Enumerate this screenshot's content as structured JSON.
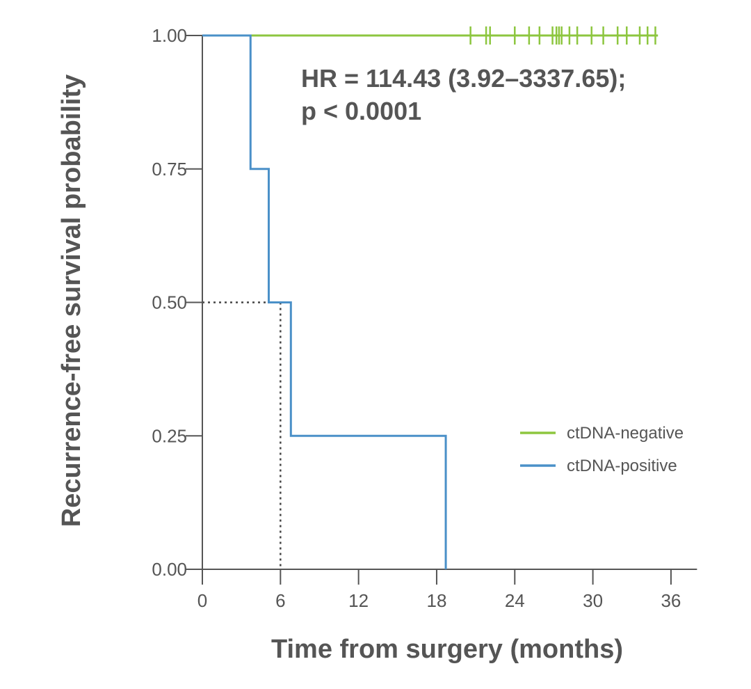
{
  "chart_data": {
    "type": "line",
    "subtype": "kaplan-meier step",
    "xlabel": "Time from surgery (months)",
    "ylabel": "Recurrence-free survival probability",
    "xlim": [
      0,
      38
    ],
    "ylim": [
      0,
      1
    ],
    "x_ticks": [
      "0",
      "6",
      "12",
      "18",
      "24",
      "30",
      "36"
    ],
    "y_ticks": [
      "0.00",
      "0.25",
      "0.50",
      "0.75",
      "1.00"
    ],
    "annotation": {
      "line1": "HR = 114.43 (3.92–3337.65);",
      "line2": "p < 0.0001"
    },
    "median_reference": {
      "x": 6.0,
      "y": 0.5,
      "style": "dotted"
    },
    "legend_position": "right",
    "series": [
      {
        "name": "ctDNA-negative",
        "color": "#8dc63f",
        "steps": [
          [
            0,
            1.0
          ],
          [
            35.0,
            1.0
          ]
        ],
        "censor_times": [
          20.6,
          21.8,
          22.1,
          24.0,
          25.1,
          25.9,
          26.9,
          27.2,
          27.4,
          27.6,
          28.2,
          28.8,
          29.9,
          30.8,
          31.9,
          32.6,
          33.6,
          34.2,
          34.8
        ]
      },
      {
        "name": "ctDNA-positive",
        "color": "#4a90c8",
        "steps": [
          [
            0,
            1.0
          ],
          [
            3.7,
            0.75
          ],
          [
            5.1,
            0.5
          ],
          [
            6.8,
            0.25
          ],
          [
            18.7,
            0.0
          ]
        ]
      }
    ]
  }
}
